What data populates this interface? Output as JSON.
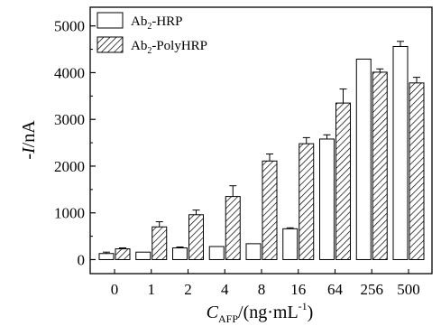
{
  "chart_data": {
    "type": "bar",
    "categories": [
      "0",
      "1",
      "2",
      "4",
      "8",
      "16",
      "64",
      "256",
      "500"
    ],
    "series": [
      {
        "name": "Ab2-HRP",
        "legend": {
          "main": "Ab",
          "sub": "2",
          "rest": "-HRP"
        },
        "pattern": "open",
        "values": [
          130,
          160,
          250,
          280,
          340,
          660,
          2580,
          4290,
          4560
        ],
        "errors": [
          30,
          0,
          20,
          0,
          0,
          20,
          90,
          0,
          110
        ]
      },
      {
        "name": "Ab2-PolyHRP",
        "legend": {
          "main": "Ab",
          "sub": "2",
          "rest": "-PolyHRP"
        },
        "pattern": "hatched",
        "values": [
          230,
          700,
          960,
          1350,
          2110,
          2480,
          3350,
          4010,
          3780
        ],
        "errors": [
          20,
          110,
          100,
          230,
          150,
          130,
          300,
          70,
          120
        ]
      }
    ],
    "ylim": [
      -300,
      5400
    ],
    "yticks": [
      "0",
      "1000",
      "2000",
      "3000",
      "4000",
      "5000"
    ],
    "ylabel": {
      "prefix": "-",
      "italic": "I",
      "suffix": "/nA"
    },
    "xlabel": {
      "italic": "C",
      "sub": "AFP",
      "text": "/(ng·mL",
      "sup": "-1",
      "close": ")"
    },
    "legend_position": "top-left",
    "grid": false,
    "colors": {
      "bar_fill": "#ffffff",
      "stroke": "#000000"
    }
  }
}
